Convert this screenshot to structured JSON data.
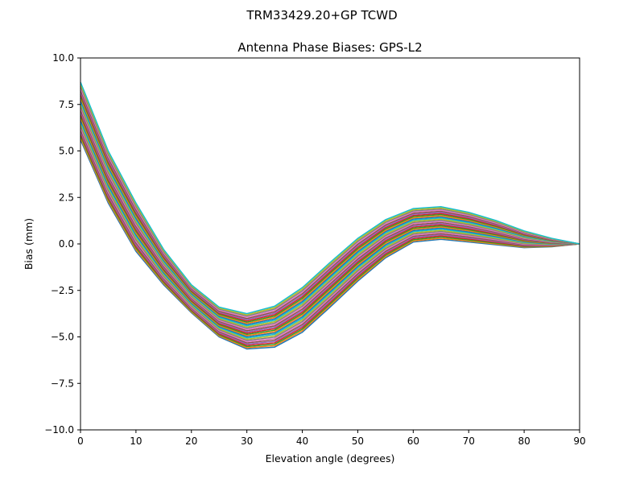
{
  "figure": {
    "suptitle": "TRM33429.20+GP  TCWD"
  },
  "chart_data": {
    "type": "line",
    "title": "Antenna Phase Biases: GPS-L2",
    "xlabel": "Elevation angle (degrees)",
    "ylabel": "Bias (mm)",
    "xlim": [
      0,
      90
    ],
    "ylim": [
      -10,
      10
    ],
    "grid": false,
    "x": [
      0,
      5,
      10,
      15,
      20,
      25,
      30,
      35,
      40,
      45,
      50,
      55,
      60,
      65,
      70,
      75,
      80,
      85,
      90
    ],
    "x_ticks": [
      0,
      10,
      20,
      30,
      40,
      50,
      60,
      70,
      80,
      90
    ],
    "x_tick_labels": [
      "0",
      "10",
      "20",
      "30",
      "40",
      "50",
      "60",
      "70",
      "80",
      "90"
    ],
    "y_ticks": [
      -10,
      -7.5,
      -5,
      -2.5,
      0,
      2.5,
      5,
      7.5,
      10
    ],
    "y_tick_labels": [
      "−10.0",
      "−7.5",
      "−5.0",
      "−2.5",
      "0.0",
      "2.5",
      "5.0",
      "7.5",
      "10.0"
    ],
    "envelope_upper": [
      8.7,
      5.0,
      2.2,
      -0.3,
      -2.2,
      -3.4,
      -3.75,
      -3.35,
      -2.35,
      -1.0,
      0.3,
      1.3,
      1.9,
      2.0,
      1.7,
      1.25,
      0.7,
      0.3,
      0.0
    ],
    "envelope_lower": [
      5.6,
      2.2,
      -0.4,
      -2.2,
      -3.7,
      -5.0,
      -5.65,
      -5.55,
      -4.75,
      -3.4,
      -2.0,
      -0.75,
      0.1,
      0.25,
      0.1,
      -0.05,
      -0.2,
      -0.15,
      0.0
    ],
    "series_count": 30,
    "colors": [
      "#1f77b4",
      "#ff7f0e",
      "#2ca02c",
      "#d62728",
      "#9467bd",
      "#8c564b",
      "#e377c2",
      "#7f7f7f",
      "#bcbd22",
      "#17becf"
    ]
  }
}
